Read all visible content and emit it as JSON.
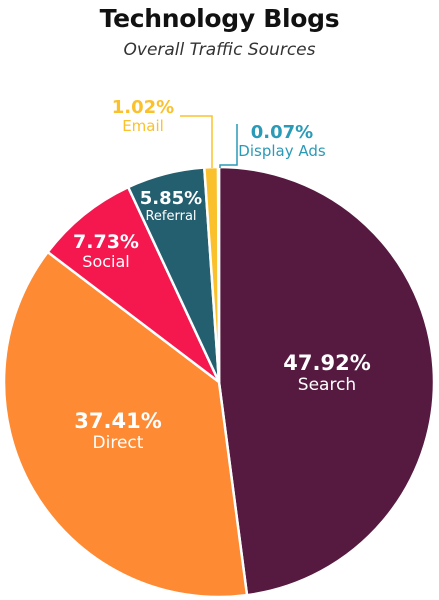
{
  "chart_data": {
    "type": "pie",
    "title": "Technology Blogs",
    "subtitle": "Overall Traffic Sources",
    "slices": [
      {
        "label": "Search",
        "value": 47.92,
        "display": "47.92%",
        "color": "#561A40"
      },
      {
        "label": "Direct",
        "value": 37.41,
        "display": "37.41%",
        "color": "#FE8A34"
      },
      {
        "label": "Social",
        "value": 7.73,
        "display": "7.73%",
        "color": "#F4184F"
      },
      {
        "label": "Referral",
        "value": 5.85,
        "display": "5.85%",
        "color": "#245F70"
      },
      {
        "label": "Email",
        "value": 1.02,
        "display": "1.02%",
        "color": "#FBC12D"
      },
      {
        "label": "Display Ads",
        "value": 0.07,
        "display": "0.07%",
        "color": "#2A9AB7"
      }
    ],
    "label_text_color": "#ffffff"
  }
}
